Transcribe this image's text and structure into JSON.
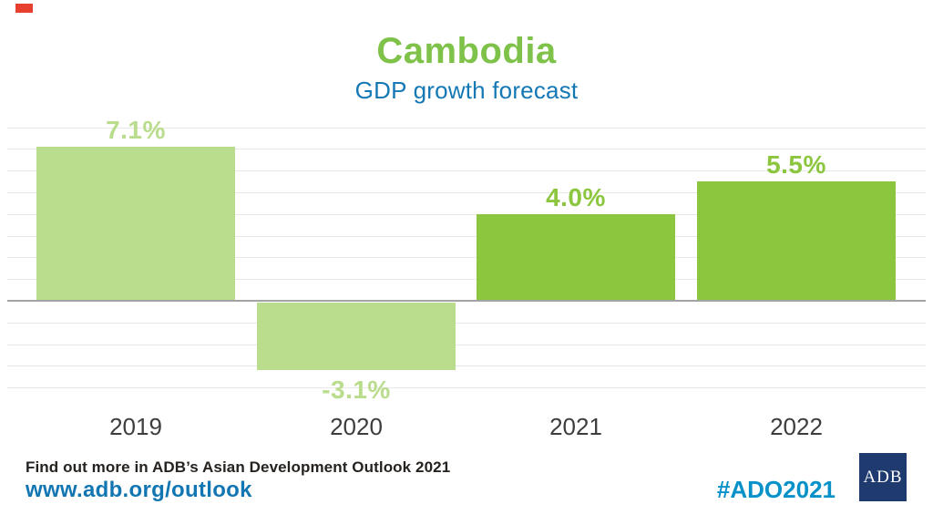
{
  "page": {
    "title": "Cambodia",
    "subtitle": "GDP growth forecast"
  },
  "chart_data": {
    "type": "bar",
    "title": "Cambodia",
    "subtitle": "GDP growth forecast",
    "categories": [
      "2019",
      "2020",
      "2021",
      "2022"
    ],
    "values": [
      7.1,
      -3.1,
      4.0,
      5.5
    ],
    "data_labels": [
      "7.1%",
      "-3.1%",
      "4.0%",
      "5.5%"
    ],
    "bar_colors": [
      "#B9DC8D",
      "#B9DC8D",
      "#8CC63F",
      "#8CC63F"
    ],
    "ylim": [
      -4,
      8
    ],
    "gridline_step": 1,
    "grid": "on",
    "baseline": 0,
    "legend": "none",
    "xlabel": "",
    "ylabel": ""
  },
  "footer": {
    "note": "Find out more in ADB’s Asian Development Outlook 2021",
    "url": "www.adb.org/outlook",
    "hashtag": "#ADO2021",
    "logo_text": "ADB"
  },
  "colors": {
    "title_green": "#7EC24A",
    "subtitle_blue": "#1478B5",
    "bar_light_green": "#B9DC8D",
    "bar_dark_green": "#8CC63F",
    "note_text": "#26221F",
    "url_blue": "#1276B2",
    "hashtag_blue": "#0791C9",
    "logo_navy": "#1E3A6E",
    "gridline_gray": "#E8E8E8",
    "axis_gray": "#A3A3A3",
    "marker_red": "#E8402F"
  }
}
